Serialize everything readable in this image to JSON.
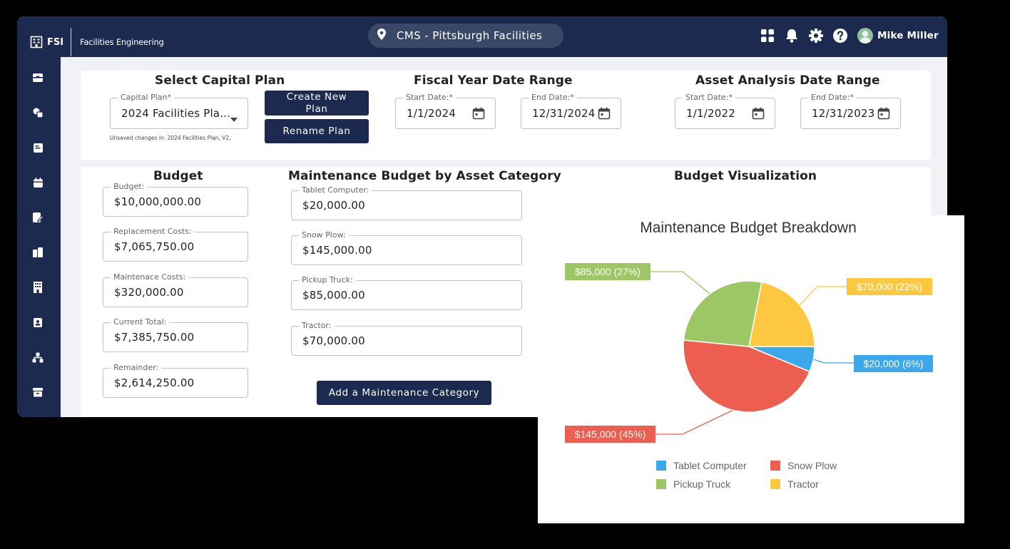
{
  "header": {
    "brand": "FSI",
    "subtitle": "Facilities Engineering",
    "location": "CMS - Pittsburgh Facilities",
    "user_name": "Mike Miller",
    "icons": [
      "grid-icon",
      "bell-icon",
      "gear-icon",
      "help-icon",
      "avatar-icon"
    ]
  },
  "sidebar": {
    "icons": [
      "inbox-icon",
      "assets-icon",
      "notes-icon",
      "calendar-icon",
      "edit-doc-icon",
      "buildings-icon",
      "building-icon",
      "contacts-icon",
      "org-chart-icon",
      "archive-icon"
    ]
  },
  "capital_plan": {
    "title": "Select Capital Plan",
    "field_label": "Capital Plan*",
    "selected": "2024 Facilities Pla...",
    "unsaved_note": "Unsaved changes in: 2024 Facilities Plan, V2,",
    "create_button": "Create New Plan",
    "rename_button": "Rename Plan"
  },
  "fiscal_range": {
    "title": "Fiscal Year Date Range",
    "start_label": "Start Date:*",
    "start_value": "1/1/2024",
    "end_label": "End Date:*",
    "end_value": "12/31/2024"
  },
  "asset_range": {
    "title": "Asset Analysis Date Range",
    "start_label": "Start Date:*",
    "start_value": "1/1/2022",
    "end_label": "End Date:*",
    "end_value": "12/31/2023"
  },
  "budget": {
    "title": "Budget",
    "fields": [
      {
        "label": "Budget:",
        "value": "$10,000,000.00"
      },
      {
        "label": "Replacement Costs:",
        "value": "$7,065,750.00"
      },
      {
        "label": "Maintenace Costs:",
        "value": "$320,000.00"
      },
      {
        "label": "Current Total:",
        "value": "$7,385,750.00"
      },
      {
        "label": "Remainder:",
        "value": "$2,614,250.00"
      }
    ]
  },
  "maintenance": {
    "title": "Maintenance Budget by Asset Category",
    "fields": [
      {
        "label": "Tablet Computer:",
        "value": "$20,000.00"
      },
      {
        "label": "Snow Plow:",
        "value": "$145,000.00"
      },
      {
        "label": "Pickup Truck:",
        "value": "$85,000.00"
      },
      {
        "label": "Tractor:",
        "value": "$70,000.00"
      }
    ],
    "add_button": "Add a Maintenance Category"
  },
  "visualization": {
    "title": "Budget Visualization"
  },
  "chart_data": {
    "type": "pie",
    "title": "Maintenance Budget Breakdown",
    "categories": [
      "Tablet Computer",
      "Snow Plow",
      "Pickup Truck",
      "Tractor"
    ],
    "values": [
      20000,
      145000,
      85000,
      70000
    ],
    "labels": [
      "$20,000 (6%)",
      "$145,000 (45%)",
      "$85,000 (27%)",
      "$70,000 (22%)"
    ],
    "colors": [
      "#3aa8ea",
      "#ec5e4f",
      "#9dc764",
      "#fdc83f"
    ],
    "legend_position": "bottom"
  }
}
